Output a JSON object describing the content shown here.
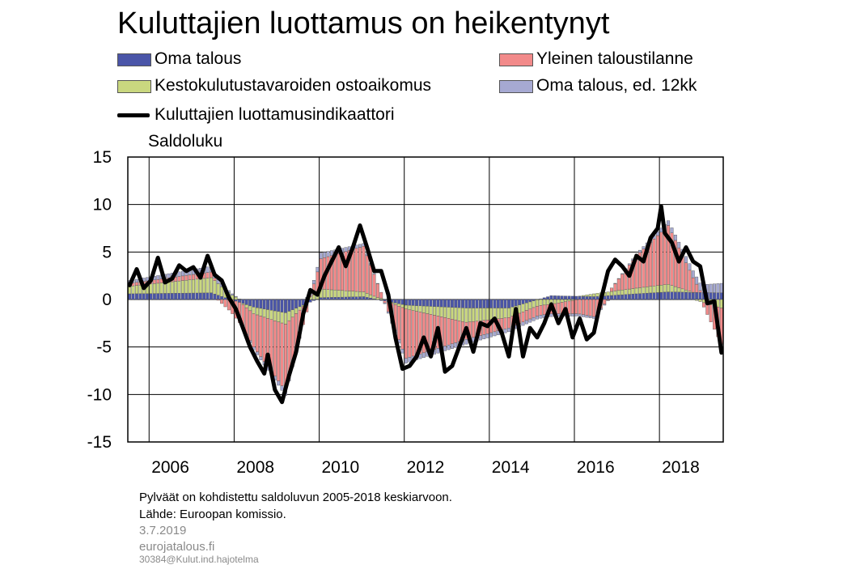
{
  "title": "Kuluttajien luottamus on heikentynyt",
  "legend": [
    {
      "label": "Oma talous",
      "color": "#4a55a8",
      "kind": "bar"
    },
    {
      "label": "Yleinen taloustilanne",
      "color": "#f28a8a",
      "kind": "bar"
    },
    {
      "label": "Kestokulutustavaroiden ostoaikomus",
      "color": "#c9d77f",
      "kind": "bar"
    },
    {
      "label": "Oma talous, ed. 12kk",
      "color": "#a6a9d2",
      "kind": "bar"
    },
    {
      "label": "Kuluttajien luottamusindikaattori",
      "color": "#000000",
      "kind": "line"
    }
  ],
  "ylabel": "Saldoluku",
  "footnote1": "Pylväät on kohdistettu saldoluvun 2005-2018 keskiarvoon.",
  "footnote2": "Lähde: Euroopan komissio.",
  "date": "3.7.2019",
  "site": "eurojatalous.fi",
  "code": "30384@Kulut.ind.hajotelma",
  "chart_data": {
    "type": "bar",
    "stacked": true,
    "x_unit": "month",
    "x_range": [
      "2005-07",
      "2019-06"
    ],
    "x_ticks": [
      "2006",
      "2008",
      "2010",
      "2012",
      "2014",
      "2016",
      "2018"
    ],
    "y_ticks": [
      "15",
      "10",
      "5",
      "0",
      "-5",
      "-10",
      "-15"
    ],
    "ylim": [
      -15,
      15
    ],
    "grid": true,
    "line": {
      "name": "Kuluttajien luottamusindikaattori",
      "points": [
        [
          "2005-07",
          1.5
        ],
        [
          "2005-09",
          3.2
        ],
        [
          "2005-11",
          1.2
        ],
        [
          "2006-01",
          2.0
        ],
        [
          "2006-03",
          4.4
        ],
        [
          "2006-05",
          1.8
        ],
        [
          "2006-07",
          2.2
        ],
        [
          "2006-09",
          3.6
        ],
        [
          "2006-11",
          3.0
        ],
        [
          "2007-01",
          3.4
        ],
        [
          "2007-03",
          2.3
        ],
        [
          "2007-05",
          4.6
        ],
        [
          "2007-07",
          2.6
        ],
        [
          "2007-09",
          2.0
        ],
        [
          "2007-11",
          0.2
        ],
        [
          "2008-01",
          -1.0
        ],
        [
          "2008-03",
          -3.0
        ],
        [
          "2008-05",
          -5.0
        ],
        [
          "2008-07",
          -6.5
        ],
        [
          "2008-09",
          -7.8
        ],
        [
          "2008-10",
          -5.8
        ],
        [
          "2008-12",
          -9.5
        ],
        [
          "2009-02",
          -10.8
        ],
        [
          "2009-04",
          -8.0
        ],
        [
          "2009-06",
          -5.5
        ],
        [
          "2009-08",
          -1.5
        ],
        [
          "2009-10",
          1.0
        ],
        [
          "2009-12",
          0.5
        ],
        [
          "2010-02",
          2.5
        ],
        [
          "2010-04",
          4.0
        ],
        [
          "2010-06",
          5.5
        ],
        [
          "2010-08",
          3.5
        ],
        [
          "2010-10",
          5.5
        ],
        [
          "2010-12",
          7.8
        ],
        [
          "2011-02",
          5.5
        ],
        [
          "2011-04",
          3.0
        ],
        [
          "2011-06",
          3.0
        ],
        [
          "2011-08",
          0.5
        ],
        [
          "2011-10",
          -4.0
        ],
        [
          "2011-12",
          -7.3
        ],
        [
          "2012-02",
          -7.0
        ],
        [
          "2012-04",
          -6.0
        ],
        [
          "2012-06",
          -4.0
        ],
        [
          "2012-08",
          -6.0
        ],
        [
          "2012-10",
          -3.0
        ],
        [
          "2012-12",
          -7.6
        ],
        [
          "2013-02",
          -7.0
        ],
        [
          "2013-04",
          -5.0
        ],
        [
          "2013-06",
          -3.0
        ],
        [
          "2013-08",
          -5.5
        ],
        [
          "2013-10",
          -2.5
        ],
        [
          "2013-12",
          -2.8
        ],
        [
          "2014-02",
          -2.0
        ],
        [
          "2014-04",
          -3.5
        ],
        [
          "2014-06",
          -6.0
        ],
        [
          "2014-08",
          -1.0
        ],
        [
          "2014-10",
          -6.0
        ],
        [
          "2014-12",
          -3.0
        ],
        [
          "2015-02",
          -4.0
        ],
        [
          "2015-04",
          -2.5
        ],
        [
          "2015-06",
          -0.5
        ],
        [
          "2015-08",
          -2.5
        ],
        [
          "2015-10",
          -1.0
        ],
        [
          "2015-12",
          -4.0
        ],
        [
          "2016-02",
          -2.0
        ],
        [
          "2016-04",
          -4.2
        ],
        [
          "2016-06",
          -3.5
        ],
        [
          "2016-08",
          0.0
        ],
        [
          "2016-10",
          3.0
        ],
        [
          "2016-12",
          4.2
        ],
        [
          "2017-02",
          3.5
        ],
        [
          "2017-04",
          2.5
        ],
        [
          "2017-06",
          4.6
        ],
        [
          "2017-08",
          4.0
        ],
        [
          "2017-10",
          6.5
        ],
        [
          "2017-12",
          7.5
        ],
        [
          "2018-01",
          9.8
        ],
        [
          "2018-02",
          7.0
        ],
        [
          "2018-04",
          6.0
        ],
        [
          "2018-06",
          4.0
        ],
        [
          "2018-08",
          5.5
        ],
        [
          "2018-10",
          4.0
        ],
        [
          "2018-12",
          3.5
        ],
        [
          "2019-02",
          -0.4
        ],
        [
          "2019-04",
          -0.2
        ],
        [
          "2019-06",
          -5.6
        ]
      ]
    },
    "bar_series": [
      {
        "name": "Oma talous",
        "color": "#4a55a8",
        "anchors": [
          [
            "2005-07",
            0.6
          ],
          [
            "2007-06",
            0.7
          ],
          [
            "2008-06",
            -0.8
          ],
          [
            "2009-03",
            -1.4
          ],
          [
            "2010-01",
            0.2
          ],
          [
            "2011-01",
            0.3
          ],
          [
            "2012-01",
            -0.6
          ],
          [
            "2013-06",
            -0.9
          ],
          [
            "2014-06",
            -0.9
          ],
          [
            "2015-06",
            0.4
          ],
          [
            "2016-06",
            0.3
          ],
          [
            "2017-06",
            0.6
          ],
          [
            "2018-03",
            0.8
          ],
          [
            "2019-06",
            0.7
          ]
        ]
      },
      {
        "name": "Kestokulutustavaroiden ostoaikomus",
        "color": "#c9d77f",
        "anchors": [
          [
            "2005-07",
            0.8
          ],
          [
            "2007-06",
            1.6
          ],
          [
            "2008-06",
            -0.7
          ],
          [
            "2009-03",
            -1.2
          ],
          [
            "2010-01",
            0.9
          ],
          [
            "2011-01",
            0.5
          ],
          [
            "2012-01",
            -0.4
          ],
          [
            "2013-06",
            -1.5
          ],
          [
            "2014-06",
            -1.0
          ],
          [
            "2015-06",
            -0.5
          ],
          [
            "2016-06",
            0.3
          ],
          [
            "2017-06",
            0.6
          ],
          [
            "2018-03",
            0.8
          ],
          [
            "2019-06",
            -0.9
          ]
        ]
      },
      {
        "name": "Yleinen taloustilanne",
        "color": "#f28a8a",
        "anchors": [
          [
            "2005-07",
            0.3
          ],
          [
            "2007-06",
            0.6
          ],
          [
            "2008-06",
            -3.5
          ],
          [
            "2009-03",
            -7.0
          ],
          [
            "2010-01",
            3.2
          ],
          [
            "2011-01",
            4.8
          ],
          [
            "2012-01",
            -5.2
          ],
          [
            "2013-06",
            -1.8
          ],
          [
            "2014-06",
            -1.1
          ],
          [
            "2015-06",
            -1.0
          ],
          [
            "2016-06",
            -1.8
          ],
          [
            "2017-06",
            3.4
          ],
          [
            "2018-03",
            6.2
          ],
          [
            "2019-06",
            -3.8
          ]
        ]
      },
      {
        "name": "Oma talous, ed. 12kk",
        "color": "#a6a9d2",
        "anchors": [
          [
            "2005-07",
            0.3
          ],
          [
            "2007-06",
            0.6
          ],
          [
            "2008-06",
            -0.3
          ],
          [
            "2009-03",
            -0.5
          ],
          [
            "2010-01",
            0.6
          ],
          [
            "2011-01",
            0.3
          ],
          [
            "2012-01",
            -0.5
          ],
          [
            "2013-06",
            -0.5
          ],
          [
            "2014-06",
            -0.4
          ],
          [
            "2015-06",
            -0.3
          ],
          [
            "2016-06",
            -0.2
          ],
          [
            "2017-06",
            0.2
          ],
          [
            "2018-03",
            0.5
          ],
          [
            "2019-06",
            1.0
          ]
        ]
      }
    ]
  }
}
